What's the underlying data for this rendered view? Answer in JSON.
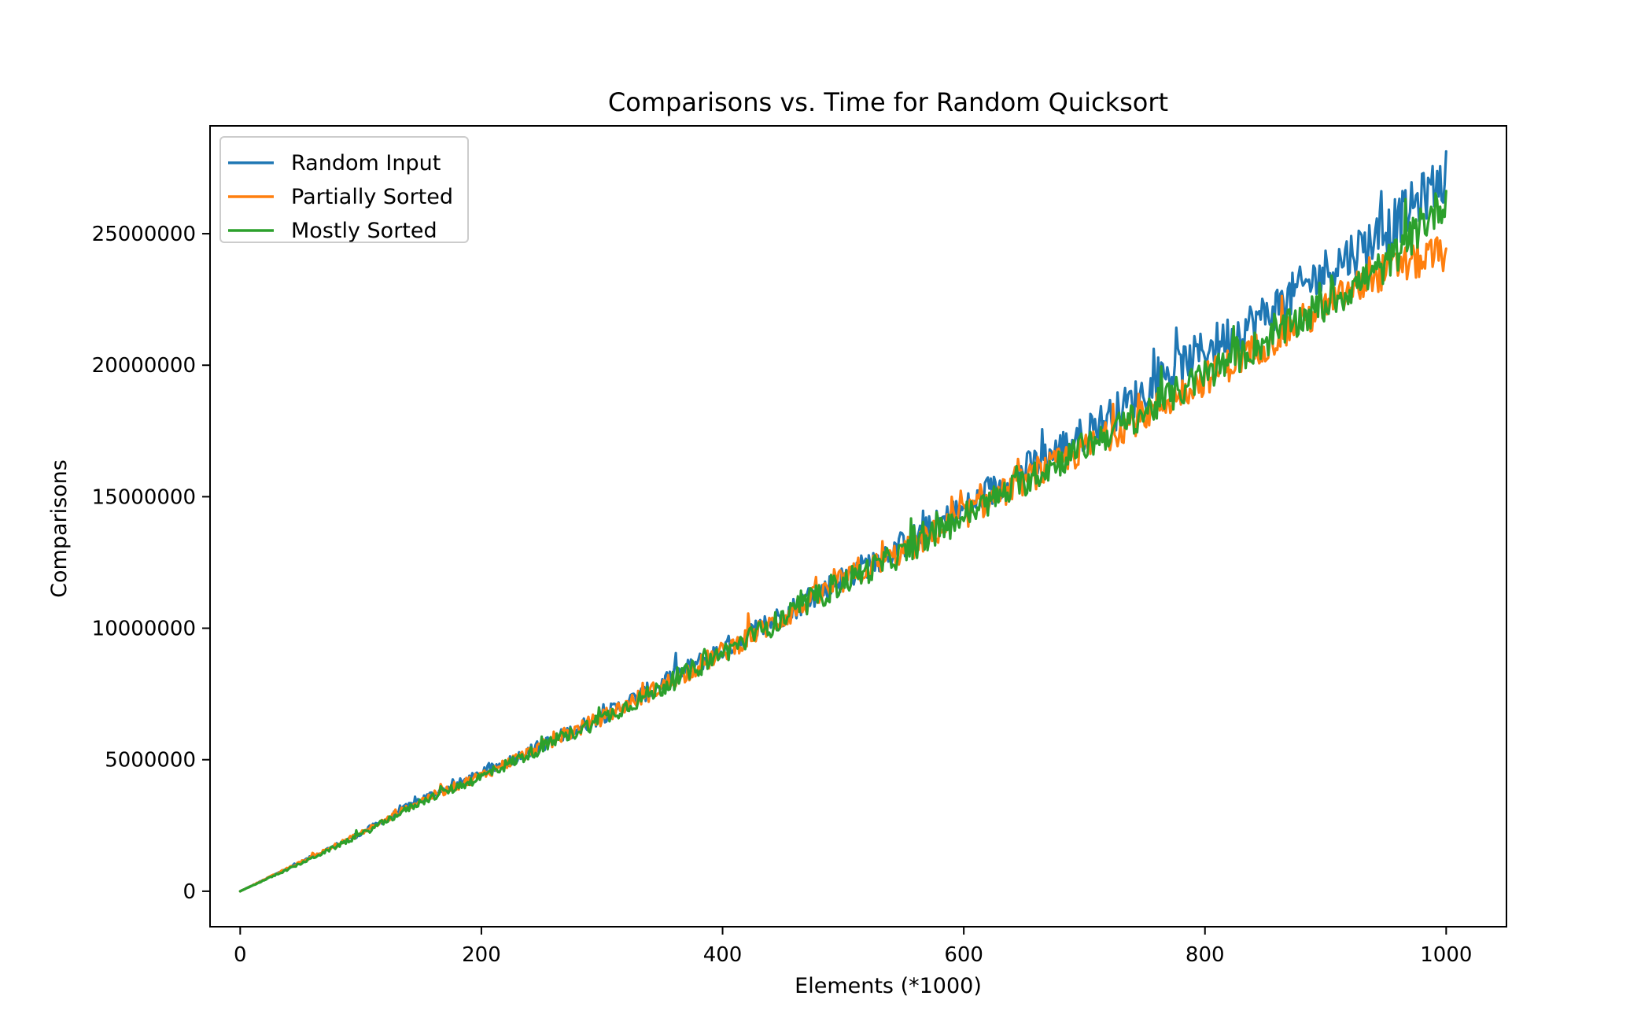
{
  "chart_data": {
    "type": "line",
    "title": "Comparisons vs. Time for Random Quicksort",
    "xlabel": "Elements (*1000)",
    "ylabel": "Comparisons",
    "xlim": [
      -25,
      1050
    ],
    "ylim": [
      -1350000,
      29100000
    ],
    "x_ticks": [
      0,
      200,
      400,
      600,
      800,
      1000
    ],
    "y_ticks": [
      0,
      5000000,
      10000000,
      15000000,
      20000000,
      25000000
    ],
    "grid": false,
    "legend_position": "top-left",
    "series": [
      {
        "name": "Random Input",
        "color": "#1f77b4",
        "x": [
          0,
          50,
          100,
          150,
          200,
          250,
          300,
          350,
          400,
          450,
          500,
          550,
          600,
          650,
          700,
          750,
          800,
          850,
          900,
          950,
          1000
        ],
        "y": [
          0,
          1100000,
          2200000,
          3500000,
          4450000,
          5550000,
          6650000,
          7900000,
          9200000,
          10500000,
          11900000,
          13200000,
          14500000,
          16000000,
          17400000,
          19000000,
          20600000,
          21900000,
          23600000,
          25100000,
          27200000
        ],
        "noise": [
          0,
          50000,
          100000,
          150000,
          200000,
          250000,
          300000,
          350000,
          400000,
          450000,
          500000,
          550000,
          600000,
          650000,
          700000,
          750000,
          800000,
          850000,
          900000,
          950000,
          1000000
        ]
      },
      {
        "name": "Partially Sorted",
        "color": "#ff7f0e",
        "x": [
          0,
          50,
          100,
          150,
          200,
          250,
          300,
          350,
          400,
          450,
          500,
          550,
          600,
          650,
          700,
          750,
          800,
          850,
          900,
          950,
          1000
        ],
        "y": [
          0,
          1100000,
          2200000,
          3450000,
          4400000,
          5500000,
          6600000,
          7800000,
          9100000,
          10400000,
          11800000,
          12900000,
          14300000,
          15600000,
          16800000,
          18100000,
          19500000,
          20800000,
          22200000,
          23600000,
          24300000
        ],
        "noise": [
          0,
          50000,
          100000,
          150000,
          200000,
          250000,
          300000,
          350000,
          400000,
          450000,
          500000,
          500000,
          550000,
          550000,
          600000,
          600000,
          650000,
          650000,
          700000,
          700000,
          750000
        ]
      },
      {
        "name": "Mostly Sorted",
        "color": "#2ca02c",
        "x": [
          0,
          50,
          100,
          150,
          200,
          250,
          300,
          350,
          400,
          450,
          500,
          550,
          600,
          650,
          700,
          750,
          800,
          850,
          900,
          950,
          1000
        ],
        "y": [
          0,
          1050000,
          2150000,
          3400000,
          4350000,
          5450000,
          6550000,
          7750000,
          9050000,
          10350000,
          11750000,
          12850000,
          14250000,
          15550000,
          16900000,
          18200000,
          19600000,
          20900000,
          22300000,
          23800000,
          26300000
        ],
        "noise": [
          0,
          50000,
          100000,
          150000,
          200000,
          250000,
          300000,
          350000,
          400000,
          450000,
          500000,
          500000,
          550000,
          550000,
          600000,
          600000,
          650000,
          650000,
          700000,
          700000,
          750000
        ]
      }
    ]
  }
}
